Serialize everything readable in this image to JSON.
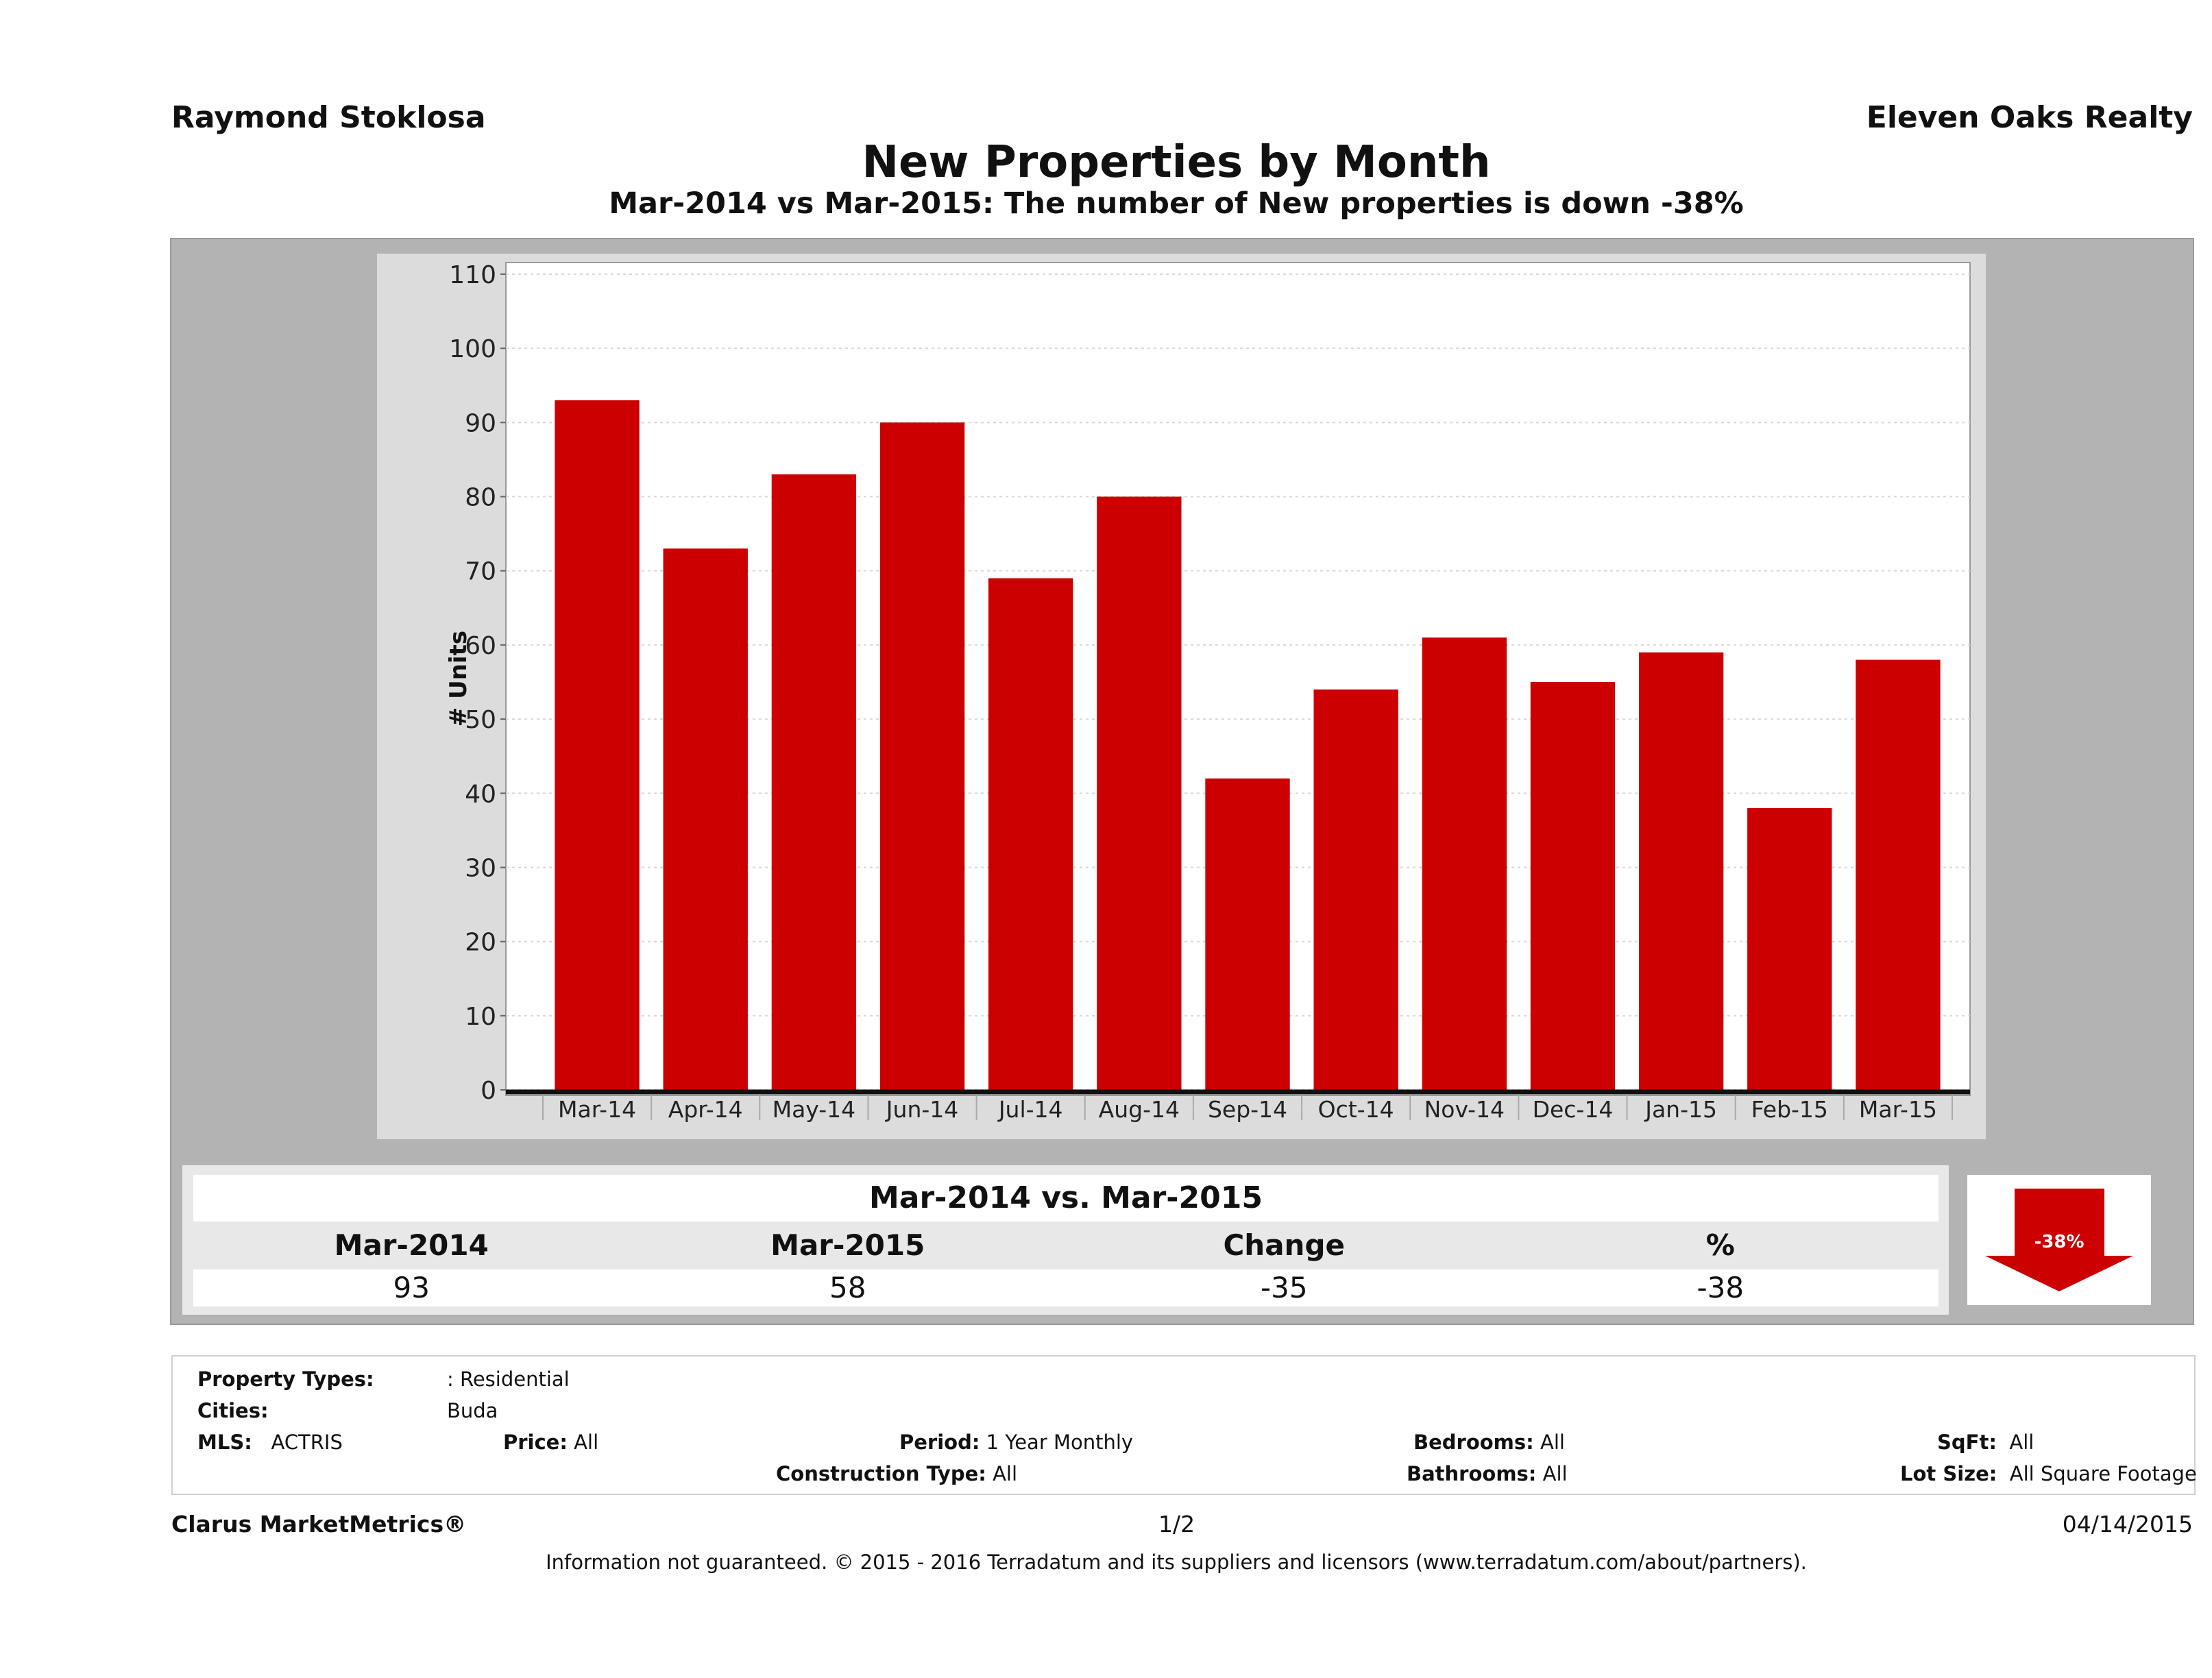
{
  "header": {
    "agent_name": "Raymond Stoklosa",
    "company_name": "Eleven Oaks Realty",
    "title": "New Properties by Month",
    "subtitle": "Mar-2014 vs Mar-2015: The number of New  properties is down -38%"
  },
  "chart_data": {
    "type": "bar",
    "title": "New Properties by Month",
    "xlabel": "",
    "ylabel": "# Units",
    "ylim": [
      0,
      110
    ],
    "yticks": [
      "0",
      "10",
      "20",
      "30",
      "40",
      "50",
      "60",
      "70",
      "80",
      "90",
      "100",
      "110"
    ],
    "grid": true,
    "categories": [
      "Mar-14",
      "Apr-14",
      "May-14",
      "Jun-14",
      "Jul-14",
      "Aug-14",
      "Sep-14",
      "Oct-14",
      "Nov-14",
      "Dec-14",
      "Jan-15",
      "Feb-15",
      "Mar-15"
    ],
    "values": [
      93,
      73,
      83,
      90,
      69,
      80,
      42,
      54,
      61,
      55,
      59,
      38,
      58
    ],
    "bar_color": "#cc0000"
  },
  "summary": {
    "title": "Mar-2014 vs. Mar-2015",
    "headers": [
      "Mar-2014",
      "Mar-2015",
      "Change",
      "%"
    ],
    "values": [
      "93",
      "58",
      "-35",
      "-38"
    ],
    "badge": "-38%",
    "badge_icon": "down-arrow-icon",
    "badge_color": "#cc0000"
  },
  "filters": {
    "property_types_label": "Property Types:",
    "property_types_value": ": Residential",
    "cities_label": "Cities:",
    "cities_value": "Buda",
    "mls_label": "MLS:",
    "mls_value": "ACTRIS",
    "price_label": "Price:",
    "price_value": "All",
    "period_label": "Period:",
    "period_value": "1 Year Monthly",
    "construction_label": "Construction Type:",
    "construction_value": "All",
    "bedrooms_label": "Bedrooms:",
    "bedrooms_value": "All",
    "bathrooms_label": "Bathrooms:",
    "bathrooms_value": "All",
    "sqft_label": "SqFt:",
    "sqft_value": "All",
    "lotsize_label": "Lot Size:",
    "lotsize_value": "All Square Footage"
  },
  "footer": {
    "brand": "Clarus MarketMetrics®",
    "page": "1/2",
    "date": "04/14/2015",
    "disclaimer": "Information not guaranteed. © 2015 - 2016 Terradatum and its suppliers and licensors (www.terradatum.com/about/partners)."
  }
}
